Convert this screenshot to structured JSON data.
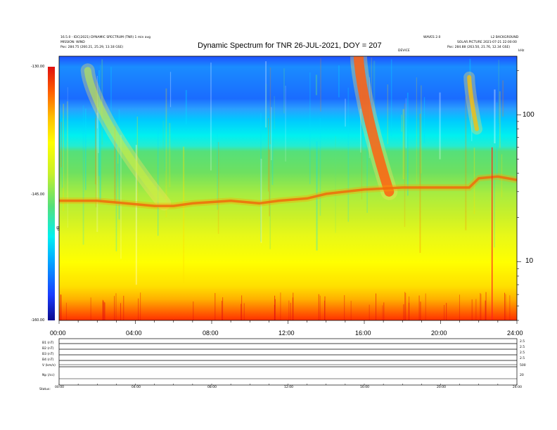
{
  "header": {
    "line1_left": "16.5.0 - IDC(2021) DYNAMIC SPECTRUM (TNR) 1 min avg",
    "line2_left": "MISSION: WIND",
    "line3_left": "Pos:    284.75 (260.21, 25.29, 13.18 GSE)",
    "line1_right_a": "WAVES 2.0",
    "line1_right_b": "L2 BACKGROUND",
    "line2_right": "SOLAR.PICTURE 2021-07-21 22:00:00",
    "line3_right": "Pos:    284.88 (263.50, 21.76, 12.34 GSE)",
    "under_title_right": "DEVICE",
    "kHz_label": "kHz"
  },
  "chart_data": {
    "type": "heatmap",
    "title": "Dynamic Spectrum for TNR 26-JUL-2021, DOY = 207",
    "x_ticks": [
      "00:00",
      "04:00",
      "08:00",
      "12:00",
      "16:00",
      "20:00",
      "24:00"
    ],
    "x_range_hours": [
      0,
      24
    ],
    "y_scale": "log",
    "y_range_kHz": [
      4,
      250
    ],
    "y_ticks": [
      "100",
      "10"
    ],
    "colorbar": {
      "ticks": [
        "-130.00",
        "-145.00",
        "-160.00"
      ],
      "label": "dB",
      "range": [
        -160,
        -130
      ]
    },
    "colormap": [
      "#0a0a8c",
      "#1a3dff",
      "#00b4ff",
      "#00f0f0",
      "#55e07a",
      "#c8f02a",
      "#ffff00",
      "#ffc000",
      "#ff6000",
      "#e01010"
    ],
    "plasma_line_kHz": [
      {
        "t": 0,
        "f": 26
      },
      {
        "t": 2,
        "f": 26
      },
      {
        "t": 3.5,
        "f": 25
      },
      {
        "t": 5,
        "f": 24
      },
      {
        "t": 6,
        "f": 24
      },
      {
        "t": 7,
        "f": 25
      },
      {
        "t": 9,
        "f": 26
      },
      {
        "t": 10.5,
        "f": 25
      },
      {
        "t": 11.5,
        "f": 26
      },
      {
        "t": 13,
        "f": 27
      },
      {
        "t": 14,
        "f": 29
      },
      {
        "t": 15,
        "f": 30
      },
      {
        "t": 16,
        "f": 31
      },
      {
        "t": 18,
        "f": 32
      },
      {
        "t": 20,
        "f": 32
      },
      {
        "t": 21.5,
        "f": 32
      },
      {
        "t": 22,
        "f": 37
      },
      {
        "t": 23,
        "f": 38
      },
      {
        "t": 24,
        "f": 36
      }
    ],
    "radio_bursts": [
      {
        "start_t": 1.5,
        "end_t": 5.5,
        "start_f": 200,
        "end_f": 25,
        "intensity": "weak"
      },
      {
        "start_t": 15.7,
        "end_t": 17.3,
        "start_f": 250,
        "end_f": 30,
        "intensity": "strong"
      },
      {
        "start_t": 21.5,
        "end_t": 21.9,
        "start_f": 180,
        "end_f": 80,
        "intensity": "medium"
      }
    ],
    "spike_t": 22.7
  },
  "subpanel": {
    "rows": [
      {
        "label": "B1 (nT)",
        "right": "2.5"
      },
      {
        "label": "B2 (nT)",
        "right": "2.5"
      },
      {
        "label": "B3 (nT)",
        "right": "2.5"
      },
      {
        "label": "B4 (nT)",
        "right": "2.5"
      },
      {
        "label": "V (km/s)",
        "right": "500"
      },
      {
        "label": "Np (/cc)",
        "right": "20"
      }
    ],
    "x_ticks": [
      "00:00",
      "04:00",
      "08:00",
      "12:00",
      "16:00",
      "20:00",
      "24:00"
    ],
    "status_label": "Status:"
  }
}
